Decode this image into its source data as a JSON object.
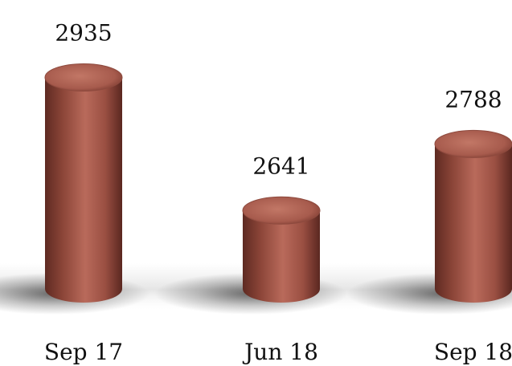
{
  "chart_data": {
    "type": "bar",
    "categories": [
      "Sep 17",
      "Jun 18",
      "Sep 18"
    ],
    "values": [
      2935,
      2641,
      2788
    ],
    "ylim": [
      2450,
      2950
    ],
    "style": "3d-cylinder",
    "bar_color": "#a3564a",
    "data_labels": true,
    "grid": false,
    "legend": "none"
  }
}
